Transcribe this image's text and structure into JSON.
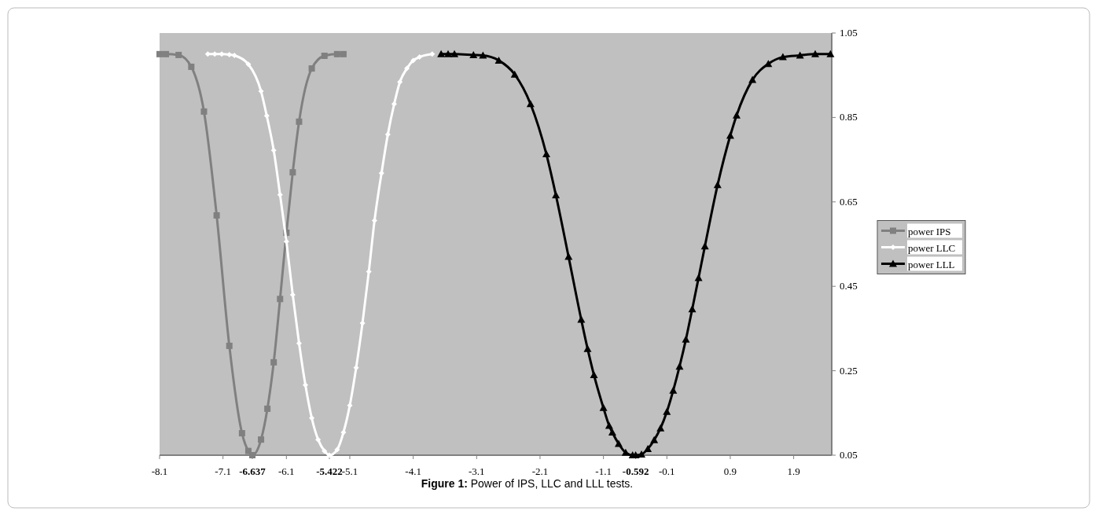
{
  "chart_data": {
    "type": "line",
    "title": "Figure 1: Power of IPS, LLC and LLL tests.",
    "xlim": [
      -8.1,
      2.5
    ],
    "xticks": [
      -8.1,
      -7.1,
      {
        "value": -6.637,
        "label": "-6.637"
      },
      -6.1,
      {
        "value": -5.422,
        "label": "-5.422"
      },
      -5.1,
      -4.1,
      -3.1,
      -2.1,
      -1.1,
      {
        "value": -0.592,
        "label": "-0.592"
      },
      -0.1,
      0.9,
      1.9
    ],
    "ylim": [
      0.05,
      1.05
    ],
    "yticks": [
      0.05,
      0.25,
      0.45,
      0.65,
      0.85,
      1.05
    ],
    "grid": false,
    "legend": "right",
    "line_style": "solid",
    "series": [
      {
        "name": "power IPS",
        "color": "#808080",
        "marker": "square",
        "x": [
          -8.1,
          -8.0,
          -7.8,
          -7.6,
          -7.4,
          -7.2,
          -7.0,
          -6.8,
          -6.7,
          -6.637,
          -6.5,
          -6.4,
          -6.3,
          -6.2,
          -6.1,
          -6.0,
          -5.9,
          -5.7,
          -5.5,
          -5.3,
          -5.2
        ],
        "values": [
          1.0,
          1.0,
          0.998,
          0.97,
          0.864,
          0.618,
          0.309,
          0.102,
          0.06,
          0.05,
          0.087,
          0.16,
          0.27,
          0.42,
          0.577,
          0.72,
          0.84,
          0.966,
          0.996,
          1.0,
          1.0
        ]
      },
      {
        "name": "power LLC",
        "color": "#ffffff",
        "marker": "diamond",
        "x": [
          -7.34,
          -7.23,
          -7.12,
          -7.0,
          -6.92,
          -6.7,
          -6.5,
          -6.41,
          -6.3,
          -6.2,
          -6.1,
          -6.0,
          -5.9,
          -5.8,
          -5.7,
          -5.6,
          -5.5,
          -5.422,
          -5.3,
          -5.2,
          -5.1,
          -5.0,
          -4.9,
          -4.8,
          -4.71,
          -4.6,
          -4.5,
          -4.4,
          -4.31,
          -4.2,
          -4.1,
          -4.0,
          -3.8
        ],
        "values": [
          1.0,
          1.0,
          1.0,
          0.999,
          0.997,
          0.976,
          0.912,
          0.854,
          0.772,
          0.667,
          0.556,
          0.43,
          0.315,
          0.216,
          0.138,
          0.087,
          0.06,
          0.05,
          0.063,
          0.104,
          0.168,
          0.257,
          0.363,
          0.485,
          0.606,
          0.718,
          0.81,
          0.882,
          0.934,
          0.966,
          0.985,
          0.993,
          1.0
        ]
      },
      {
        "name": "power LLL",
        "color": "#000000",
        "marker": "triangle",
        "x": [
          -3.66,
          -3.55,
          -3.45,
          -3.15,
          -3.0,
          -2.75,
          -2.5,
          -2.25,
          -2.0,
          -1.85,
          -1.65,
          -1.45,
          -1.35,
          -1.25,
          -1.1,
          -1.01,
          -0.96,
          -0.86,
          -0.75,
          -0.64,
          -0.592,
          -0.5,
          -0.4,
          -0.3,
          -0.2,
          -0.1,
          0.0,
          0.1,
          0.2,
          0.3,
          0.4,
          0.5,
          0.7,
          0.9,
          1.0,
          1.25,
          1.5,
          1.73,
          2.0,
          2.24,
          2.48
        ],
        "values": [
          1.0,
          1.0,
          1.0,
          0.998,
          0.997,
          0.985,
          0.952,
          0.882,
          0.763,
          0.666,
          0.52,
          0.371,
          0.302,
          0.24,
          0.162,
          0.12,
          0.104,
          0.077,
          0.056,
          0.05,
          0.05,
          0.052,
          0.065,
          0.086,
          0.114,
          0.153,
          0.203,
          0.26,
          0.324,
          0.396,
          0.47,
          0.545,
          0.69,
          0.807,
          0.855,
          0.939,
          0.977,
          0.993,
          0.997,
          1.0,
          1.0
        ]
      }
    ]
  }
}
